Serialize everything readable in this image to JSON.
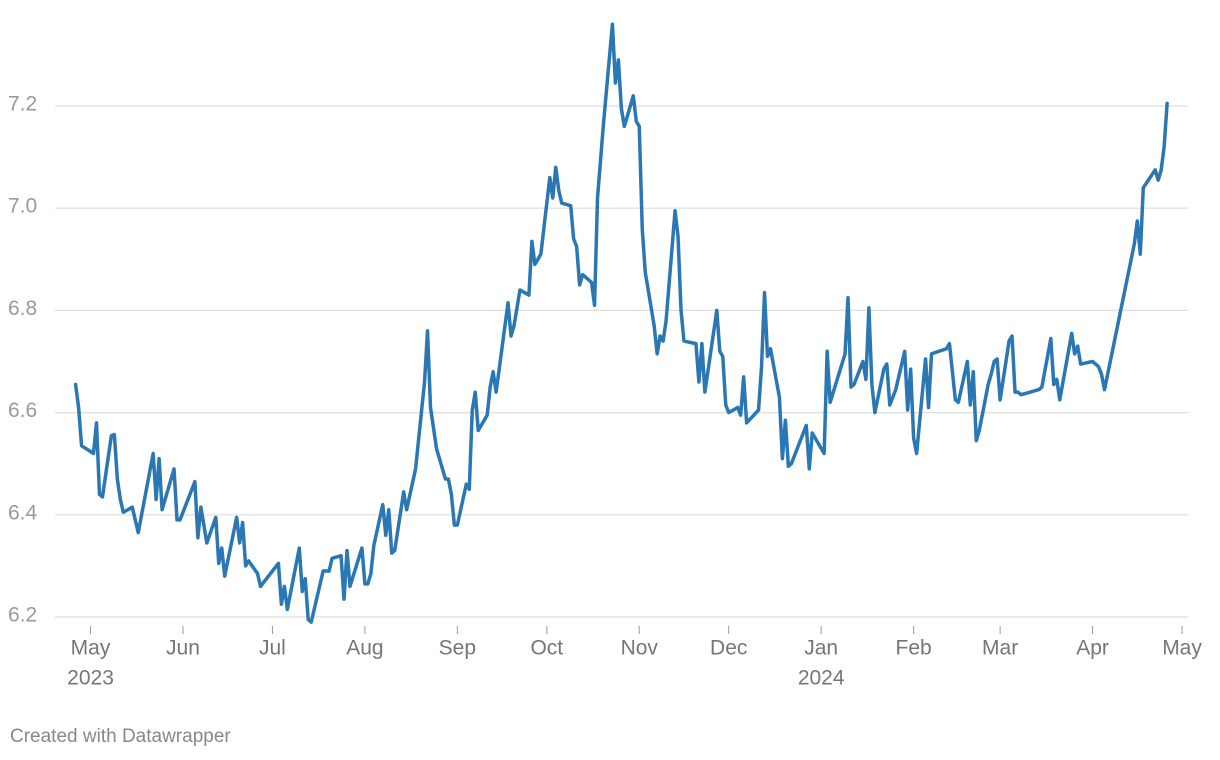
{
  "chart_data": {
    "type": "line",
    "x": [
      "2023-04-26",
      "2023-04-27",
      "2023-04-28",
      "2023-05-02",
      "2023-05-03",
      "2023-05-04",
      "2023-05-05",
      "2023-05-08",
      "2023-05-09",
      "2023-05-10",
      "2023-05-11",
      "2023-05-12",
      "2023-05-15",
      "2023-05-16",
      "2023-05-17",
      "2023-05-22",
      "2023-05-23",
      "2023-05-24",
      "2023-05-25",
      "2023-05-29",
      "2023-05-30",
      "2023-05-31",
      "2023-06-05",
      "2023-06-06",
      "2023-06-07",
      "2023-06-09",
      "2023-06-12",
      "2023-06-13",
      "2023-06-14",
      "2023-06-15",
      "2023-06-19",
      "2023-06-20",
      "2023-06-21",
      "2023-06-22",
      "2023-06-23",
      "2023-06-26",
      "2023-06-27",
      "2023-07-03",
      "2023-07-04",
      "2023-07-05",
      "2023-07-06",
      "2023-07-10",
      "2023-07-11",
      "2023-07-12",
      "2023-07-13",
      "2023-07-14",
      "2023-07-18",
      "2023-07-20",
      "2023-07-21",
      "2023-07-24",
      "2023-07-25",
      "2023-07-26",
      "2023-07-27",
      "2023-07-31",
      "2023-08-01",
      "2023-08-02",
      "2023-08-03",
      "2023-08-04",
      "2023-08-07",
      "2023-08-08",
      "2023-08-09",
      "2023-08-10",
      "2023-08-11",
      "2023-08-14",
      "2023-08-15",
      "2023-08-18",
      "2023-08-21",
      "2023-08-22",
      "2023-08-23",
      "2023-08-25",
      "2023-08-28",
      "2023-08-29",
      "2023-08-30",
      "2023-08-31",
      "2023-09-01",
      "2023-09-04",
      "2023-09-05",
      "2023-09-06",
      "2023-09-07",
      "2023-09-08",
      "2023-09-11",
      "2023-09-12",
      "2023-09-13",
      "2023-09-14",
      "2023-09-18",
      "2023-09-19",
      "2023-09-20",
      "2023-09-22",
      "2023-09-25",
      "2023-09-26",
      "2023-09-27",
      "2023-09-29",
      "2023-10-02",
      "2023-10-03",
      "2023-10-04",
      "2023-10-05",
      "2023-10-06",
      "2023-10-09",
      "2023-10-10",
      "2023-10-11",
      "2023-10-12",
      "2023-10-13",
      "2023-10-16",
      "2023-10-17",
      "2023-10-18",
      "2023-10-20",
      "2023-10-23",
      "2023-10-24",
      "2023-10-25",
      "2023-10-26",
      "2023-10-27",
      "2023-10-30",
      "2023-10-31",
      "2023-11-01",
      "2023-11-02",
      "2023-11-03",
      "2023-11-06",
      "2023-11-07",
      "2023-11-08",
      "2023-11-09",
      "2023-11-10",
      "2023-11-13",
      "2023-11-14",
      "2023-11-15",
      "2023-11-16",
      "2023-11-20",
      "2023-11-21",
      "2023-11-22",
      "2023-11-23",
      "2023-11-27",
      "2023-11-28",
      "2023-11-29",
      "2023-11-30",
      "2023-12-01",
      "2023-12-04",
      "2023-12-05",
      "2023-12-06",
      "2023-12-07",
      "2023-12-11",
      "2023-12-12",
      "2023-12-13",
      "2023-12-14",
      "2023-12-15",
      "2023-12-18",
      "2023-12-19",
      "2023-12-20",
      "2023-12-21",
      "2023-12-22",
      "2023-12-27",
      "2023-12-28",
      "2023-12-29",
      "2024-01-02",
      "2024-01-03",
      "2024-01-04",
      "2024-01-09",
      "2024-01-10",
      "2024-01-11",
      "2024-01-12",
      "2024-01-15",
      "2024-01-16",
      "2024-01-17",
      "2024-01-18",
      "2024-01-19",
      "2024-01-22",
      "2024-01-23",
      "2024-01-24",
      "2024-01-25",
      "2024-01-26",
      "2024-01-29",
      "2024-01-30",
      "2024-01-31",
      "2024-02-01",
      "2024-02-02",
      "2024-02-05",
      "2024-02-06",
      "2024-02-07",
      "2024-02-12",
      "2024-02-13",
      "2024-02-15",
      "2024-02-16",
      "2024-02-19",
      "2024-02-20",
      "2024-02-21",
      "2024-02-22",
      "2024-02-23",
      "2024-02-26",
      "2024-02-27",
      "2024-02-28",
      "2024-02-29",
      "2024-03-01",
      "2024-03-04",
      "2024-03-05",
      "2024-03-06",
      "2024-03-07",
      "2024-03-08",
      "2024-03-11",
      "2024-03-14",
      "2024-03-15",
      "2024-03-18",
      "2024-03-19",
      "2024-03-20",
      "2024-03-21",
      "2024-03-25",
      "2024-03-26",
      "2024-03-27",
      "2024-03-28",
      "2024-04-01",
      "2024-04-03",
      "2024-04-04",
      "2024-04-05",
      "2024-04-15",
      "2024-04-16",
      "2024-04-17",
      "2024-04-18",
      "2024-04-22",
      "2024-04-23",
      "2024-04-24",
      "2024-04-25",
      "2024-04-26"
    ],
    "series": [
      {
        "color": "#2a77b4",
        "values": [
          6.655,
          6.61,
          6.535,
          6.52,
          6.58,
          6.44,
          6.435,
          6.555,
          6.557,
          6.47,
          6.43,
          6.405,
          6.415,
          6.39,
          6.365,
          6.52,
          6.43,
          6.51,
          6.41,
          6.49,
          6.39,
          6.39,
          6.465,
          6.355,
          6.415,
          6.345,
          6.395,
          6.305,
          6.335,
          6.28,
          6.395,
          6.345,
          6.385,
          6.3,
          6.31,
          6.285,
          6.26,
          6.305,
          6.225,
          6.26,
          6.215,
          6.335,
          6.25,
          6.275,
          6.195,
          6.19,
          6.29,
          6.29,
          6.315,
          6.32,
          6.235,
          6.33,
          6.26,
          6.335,
          6.265,
          6.265,
          6.285,
          6.34,
          6.42,
          6.36,
          6.41,
          6.325,
          6.33,
          6.445,
          6.41,
          6.49,
          6.66,
          6.76,
          6.61,
          6.53,
          6.47,
          6.47,
          6.44,
          6.38,
          6.38,
          6.46,
          6.45,
          6.605,
          6.64,
          6.565,
          6.595,
          6.65,
          6.68,
          6.64,
          6.815,
          6.75,
          6.77,
          6.84,
          6.83,
          6.935,
          6.89,
          6.91,
          7.06,
          7.02,
          7.08,
          7.035,
          7.01,
          7.005,
          6.94,
          6.925,
          6.85,
          6.87,
          6.855,
          6.81,
          7.02,
          7.165,
          7.36,
          7.245,
          7.29,
          7.195,
          7.16,
          7.22,
          7.17,
          7.16,
          6.96,
          6.875,
          6.77,
          6.715,
          6.75,
          6.74,
          6.78,
          6.995,
          6.945,
          6.8,
          6.74,
          6.735,
          6.66,
          6.735,
          6.64,
          6.8,
          6.72,
          6.71,
          6.615,
          6.6,
          6.61,
          6.595,
          6.67,
          6.58,
          6.605,
          6.69,
          6.835,
          6.71,
          6.725,
          6.63,
          6.51,
          6.585,
          6.495,
          6.5,
          6.575,
          6.49,
          6.56,
          6.52,
          6.72,
          6.62,
          6.715,
          6.825,
          6.65,
          6.655,
          6.7,
          6.665,
          6.805,
          6.655,
          6.6,
          6.685,
          6.695,
          6.615,
          6.63,
          6.645,
          6.72,
          6.605,
          6.685,
          6.55,
          6.52,
          6.705,
          6.61,
          6.715,
          6.725,
          6.735,
          6.625,
          6.62,
          6.7,
          6.615,
          6.68,
          6.545,
          6.565,
          6.655,
          6.675,
          6.7,
          6.705,
          6.625,
          6.74,
          6.75,
          6.64,
          6.64,
          6.635,
          6.64,
          6.645,
          6.65,
          6.745,
          6.655,
          6.665,
          6.625,
          6.755,
          6.715,
          6.73,
          6.695,
          6.7,
          6.69,
          6.675,
          6.645,
          6.93,
          6.975,
          6.91,
          7.04,
          7.075,
          7.055,
          7.075,
          7.12,
          7.205
        ]
      }
    ],
    "xlim": [
      "2023-04-04",
      "2024-05-03"
    ],
    "xticks": [
      {
        "value": "2023-05-01",
        "label": "May",
        "year": "2023"
      },
      {
        "value": "2023-06-01",
        "label": "Jun"
      },
      {
        "value": "2023-07-01",
        "label": "Jul"
      },
      {
        "value": "2023-08-01",
        "label": "Aug"
      },
      {
        "value": "2023-09-01",
        "label": "Sep"
      },
      {
        "value": "2023-10-01",
        "label": "Oct"
      },
      {
        "value": "2023-11-01",
        "label": "Nov"
      },
      {
        "value": "2023-12-01",
        "label": "Dec"
      },
      {
        "value": "2024-01-01",
        "label": "Jan",
        "year": "2024"
      },
      {
        "value": "2024-02-01",
        "label": "Feb"
      },
      {
        "value": "2024-03-01",
        "label": "Mar"
      },
      {
        "value": "2024-04-01",
        "label": "Apr"
      },
      {
        "value": "2024-05-01",
        "label": "May"
      }
    ],
    "ylim": [
      6.185,
      7.37
    ],
    "yticks": [
      6.2,
      6.4,
      6.6,
      6.8,
      {
        "value": 7,
        "label": "7.0"
      },
      7.2
    ],
    "grid": true,
    "footer": "Created with Datawrapper"
  }
}
